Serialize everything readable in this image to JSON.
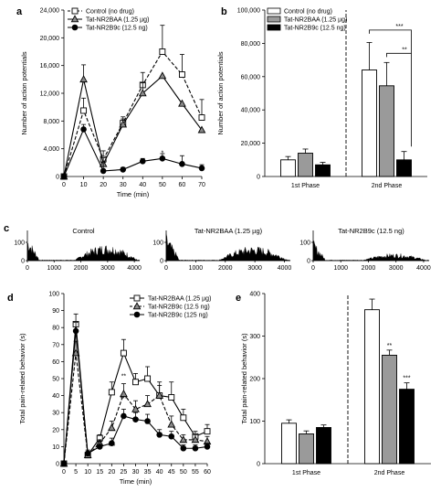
{
  "panel_labels": {
    "a": "a",
    "b": "b",
    "c": "c",
    "d": "d",
    "e": "e"
  },
  "chart_data": [
    {
      "id": "a",
      "type": "line",
      "xlabel": "Time (min)",
      "ylabel": "Number of action potentials",
      "xlim": [
        0,
        70
      ],
      "ylim": [
        0,
        24000
      ],
      "xticks": [
        0,
        10,
        20,
        30,
        40,
        50,
        60,
        70
      ],
      "yticks": [
        0,
        4000,
        8000,
        12000,
        16000,
        20000,
        24000
      ],
      "ytick_labels": [
        "0",
        "4,000",
        "8,000",
        "12,000",
        "16,000",
        "20,000",
        "24,000"
      ],
      "x": [
        0,
        10,
        20,
        30,
        40,
        50,
        60,
        70
      ],
      "series": [
        {
          "name": "Control (no drug)",
          "marker": "square-open",
          "dash": "dashed",
          "values": [
            0,
            9500,
            2500,
            7700,
            13200,
            18000,
            14700,
            8500
          ],
          "errors": [
            0,
            1800,
            1200,
            900,
            1800,
            3800,
            2900,
            2600
          ]
        },
        {
          "name": "Tat-NR2BAA (1.25 µg)",
          "marker": "triangle-gray",
          "dash": "solid",
          "values": [
            0,
            14000,
            1800,
            7500,
            12000,
            14500,
            10500,
            6700
          ],
          "errors": [
            0,
            2100,
            900,
            800,
            1500,
            0,
            0,
            0
          ]
        },
        {
          "name": "Tat-NR2B9c (12.5 ng)",
          "marker": "circle-filled",
          "dash": "solid",
          "values": [
            0,
            6800,
            800,
            1000,
            2200,
            2600,
            1800,
            1200
          ],
          "errors": [
            0,
            700,
            1200,
            300,
            400,
            700,
            1200,
            500
          ]
        }
      ],
      "annotations": [
        {
          "x": 50,
          "y": 2600,
          "text": "*"
        }
      ],
      "legend": "top-left"
    },
    {
      "id": "b",
      "type": "bar",
      "ylabel": "Number of action potentials",
      "ylim": [
        0,
        100000
      ],
      "yticks": [
        0,
        20000,
        40000,
        60000,
        80000,
        100000
      ],
      "ytick_labels": [
        "0",
        "20,000",
        "40,000",
        "60,000",
        "80,000",
        "100,000"
      ],
      "categories": [
        "1st Phase",
        "2nd Phase"
      ],
      "series": [
        {
          "name": "Control (no drug)",
          "color": "#ffffff",
          "values": [
            10000,
            64000
          ],
          "errors": [
            2000,
            16500
          ]
        },
        {
          "name": "Tat-NR2BAA (1.25 µg)",
          "color": "#9a9a9a",
          "values": [
            14000,
            54500
          ],
          "errors": [
            2500,
            14000
          ]
        },
        {
          "name": "Tat-NR2B9c (12.5 ng)",
          "color": "#000000",
          "values": [
            7000,
            10000
          ],
          "errors": [
            1500,
            5000
          ]
        }
      ],
      "significance": [
        {
          "text": "***"
        },
        {
          "text": "**"
        }
      ],
      "legend": "top-left"
    },
    {
      "id": "c",
      "type": "area",
      "xlim": [
        0,
        4200
      ],
      "ylim": [
        0,
        150
      ],
      "xticks": [
        0,
        1000,
        2000,
        3000,
        4000
      ],
      "yticks": [
        0,
        100
      ],
      "traces": [
        {
          "title": "Control",
          "phase1_peak": 140,
          "phase2_peak": 100
        },
        {
          "title": "Tat-NR2BAA (1.25 µg)",
          "phase1_peak": 150,
          "phase2_peak": 90
        },
        {
          "title": "Tat-NR2B9c (12.5 ng)",
          "phase1_peak": 115,
          "phase2_peak": 45
        }
      ]
    },
    {
      "id": "d",
      "type": "line",
      "xlabel": "Time (min)",
      "ylabel": "Total pain-related behavior (s)",
      "xlim": [
        0,
        60
      ],
      "ylim": [
        0,
        100
      ],
      "xticks": [
        0,
        5,
        10,
        15,
        20,
        25,
        30,
        35,
        40,
        45,
        50,
        55,
        60
      ],
      "yticks": [
        0,
        10,
        20,
        30,
        40,
        50,
        60,
        70,
        80,
        90,
        100
      ],
      "x": [
        0,
        5,
        10,
        15,
        20,
        25,
        30,
        35,
        40,
        45,
        50,
        55,
        60
      ],
      "series": [
        {
          "name": "Tat-NR2BAA (1.25 µg)",
          "marker": "square-open",
          "dash": "solid",
          "values": [
            0,
            82,
            5,
            15,
            42,
            65,
            48,
            50,
            40,
            39,
            27,
            16,
            19
          ],
          "errors": [
            0,
            6,
            2,
            2,
            6,
            8,
            5,
            7,
            6,
            9,
            5,
            3,
            4
          ]
        },
        {
          "name": "Tat-NR2B9c (12.5 ng)",
          "marker": "triangle-gray",
          "dash": "dashed",
          "values": [
            0,
            65,
            5,
            12,
            21,
            41,
            32,
            35,
            40,
            23,
            14,
            14,
            13
          ],
          "errors": [
            0,
            7,
            2,
            2,
            4,
            6,
            5,
            5,
            8,
            5,
            3,
            3,
            3
          ]
        },
        {
          "name": "Tat-NR2B9c (125 ng)",
          "marker": "circle-filled",
          "dash": "solid",
          "values": [
            0,
            78,
            6,
            10,
            12,
            28,
            26,
            25,
            17,
            16,
            9,
            9,
            10
          ],
          "errors": [
            0,
            5,
            2,
            3,
            3,
            4,
            4,
            4,
            3,
            3,
            2,
            2,
            2
          ]
        }
      ],
      "annotations": [
        {
          "x": 20,
          "y": 7,
          "text": "***"
        },
        {
          "x": 25,
          "y": 48,
          "text": "**"
        },
        {
          "x": 25,
          "y": 35,
          "text": "***"
        },
        {
          "x": 30,
          "y": 22,
          "text": "*"
        },
        {
          "x": 35,
          "y": 20,
          "text": "**"
        }
      ],
      "legend": "top-right"
    },
    {
      "id": "e",
      "type": "bar",
      "ylabel": "Total pain-related behavior (s)",
      "ylim": [
        0,
        400
      ],
      "yticks": [
        0,
        100,
        200,
        300,
        400
      ],
      "categories": [
        "1st Phase",
        "2nd Phase"
      ],
      "series": [
        {
          "name": "Tat-NR2BAA (1.25 µg)",
          "color": "#ffffff",
          "values": [
            95,
            362
          ],
          "errors": [
            8,
            25
          ]
        },
        {
          "name": "Tat-NR2B9c (12.5 ng)",
          "color": "#9a9a9a",
          "values": [
            70,
            255
          ],
          "errors": [
            7,
            12
          ]
        },
        {
          "name": "Tat-NR2B9c (125 ng)",
          "color": "#000000",
          "values": [
            85,
            175
          ],
          "errors": [
            6,
            15
          ]
        }
      ],
      "significance": [
        {
          "category": "2nd Phase",
          "series": 1,
          "text": "**"
        },
        {
          "category": "2nd Phase",
          "series": 2,
          "text": "***"
        }
      ]
    }
  ]
}
